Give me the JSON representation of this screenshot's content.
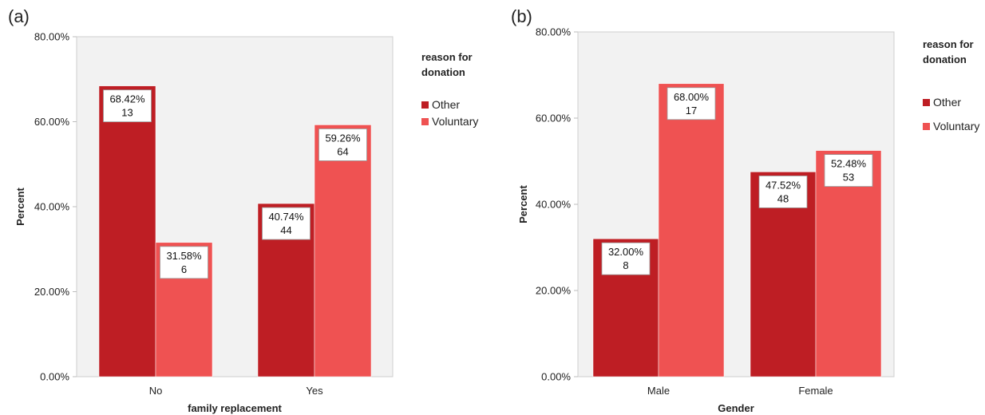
{
  "panels": [
    {
      "panel_label": "(a)",
      "legend_title_lines": [
        "reason for",
        "donation"
      ],
      "y_tick_labels": [
        "0.00%",
        "20.00%",
        "40.00%",
        "60.00%",
        "80.00%"
      ]
    },
    {
      "panel_label": "(b)",
      "legend_title_lines": [
        "reason for",
        "donation"
      ],
      "y_tick_labels": [
        "0.00%",
        "20.00%",
        "40.00%",
        "60.00%",
        "80.00%"
      ]
    }
  ],
  "colors": {
    "Other": "#be1e24",
    "Voluntary": "#ef5252"
  },
  "chart_data": [
    {
      "type": "bar",
      "categories": [
        "No",
        "Yes"
      ],
      "series": [
        {
          "name": "Other",
          "values": [
            68.42,
            40.74
          ],
          "counts": [
            13,
            44
          ],
          "labels": [
            "68.42%",
            "40.74%"
          ]
        },
        {
          "name": "Voluntary",
          "values": [
            31.58,
            59.26
          ],
          "counts": [
            6,
            64
          ],
          "labels": [
            "31.58%",
            "59.26%"
          ]
        }
      ],
      "title": "",
      "xlabel": "family replacement",
      "ylabel": "Percent",
      "ylim": [
        0,
        80
      ],
      "yticks": [
        0,
        20,
        40,
        60,
        80
      ],
      "grid": false,
      "legend_title": "reason for donation",
      "legend_position": "right"
    },
    {
      "type": "bar",
      "categories": [
        "Male",
        "Female"
      ],
      "series": [
        {
          "name": "Other",
          "values": [
            32.0,
            47.52
          ],
          "counts": [
            8,
            48
          ],
          "labels": [
            "32.00%",
            "47.52%"
          ]
        },
        {
          "name": "Voluntary",
          "values": [
            68.0,
            52.48
          ],
          "counts": [
            17,
            53
          ],
          "labels": [
            "68.00%",
            "52.48%"
          ]
        }
      ],
      "title": "",
      "xlabel": "Gender",
      "ylabel": "Percent",
      "ylim": [
        0,
        80
      ],
      "yticks": [
        0,
        20,
        40,
        60,
        80
      ],
      "grid": false,
      "legend_title": "reason for donation",
      "legend_position": "right"
    }
  ]
}
